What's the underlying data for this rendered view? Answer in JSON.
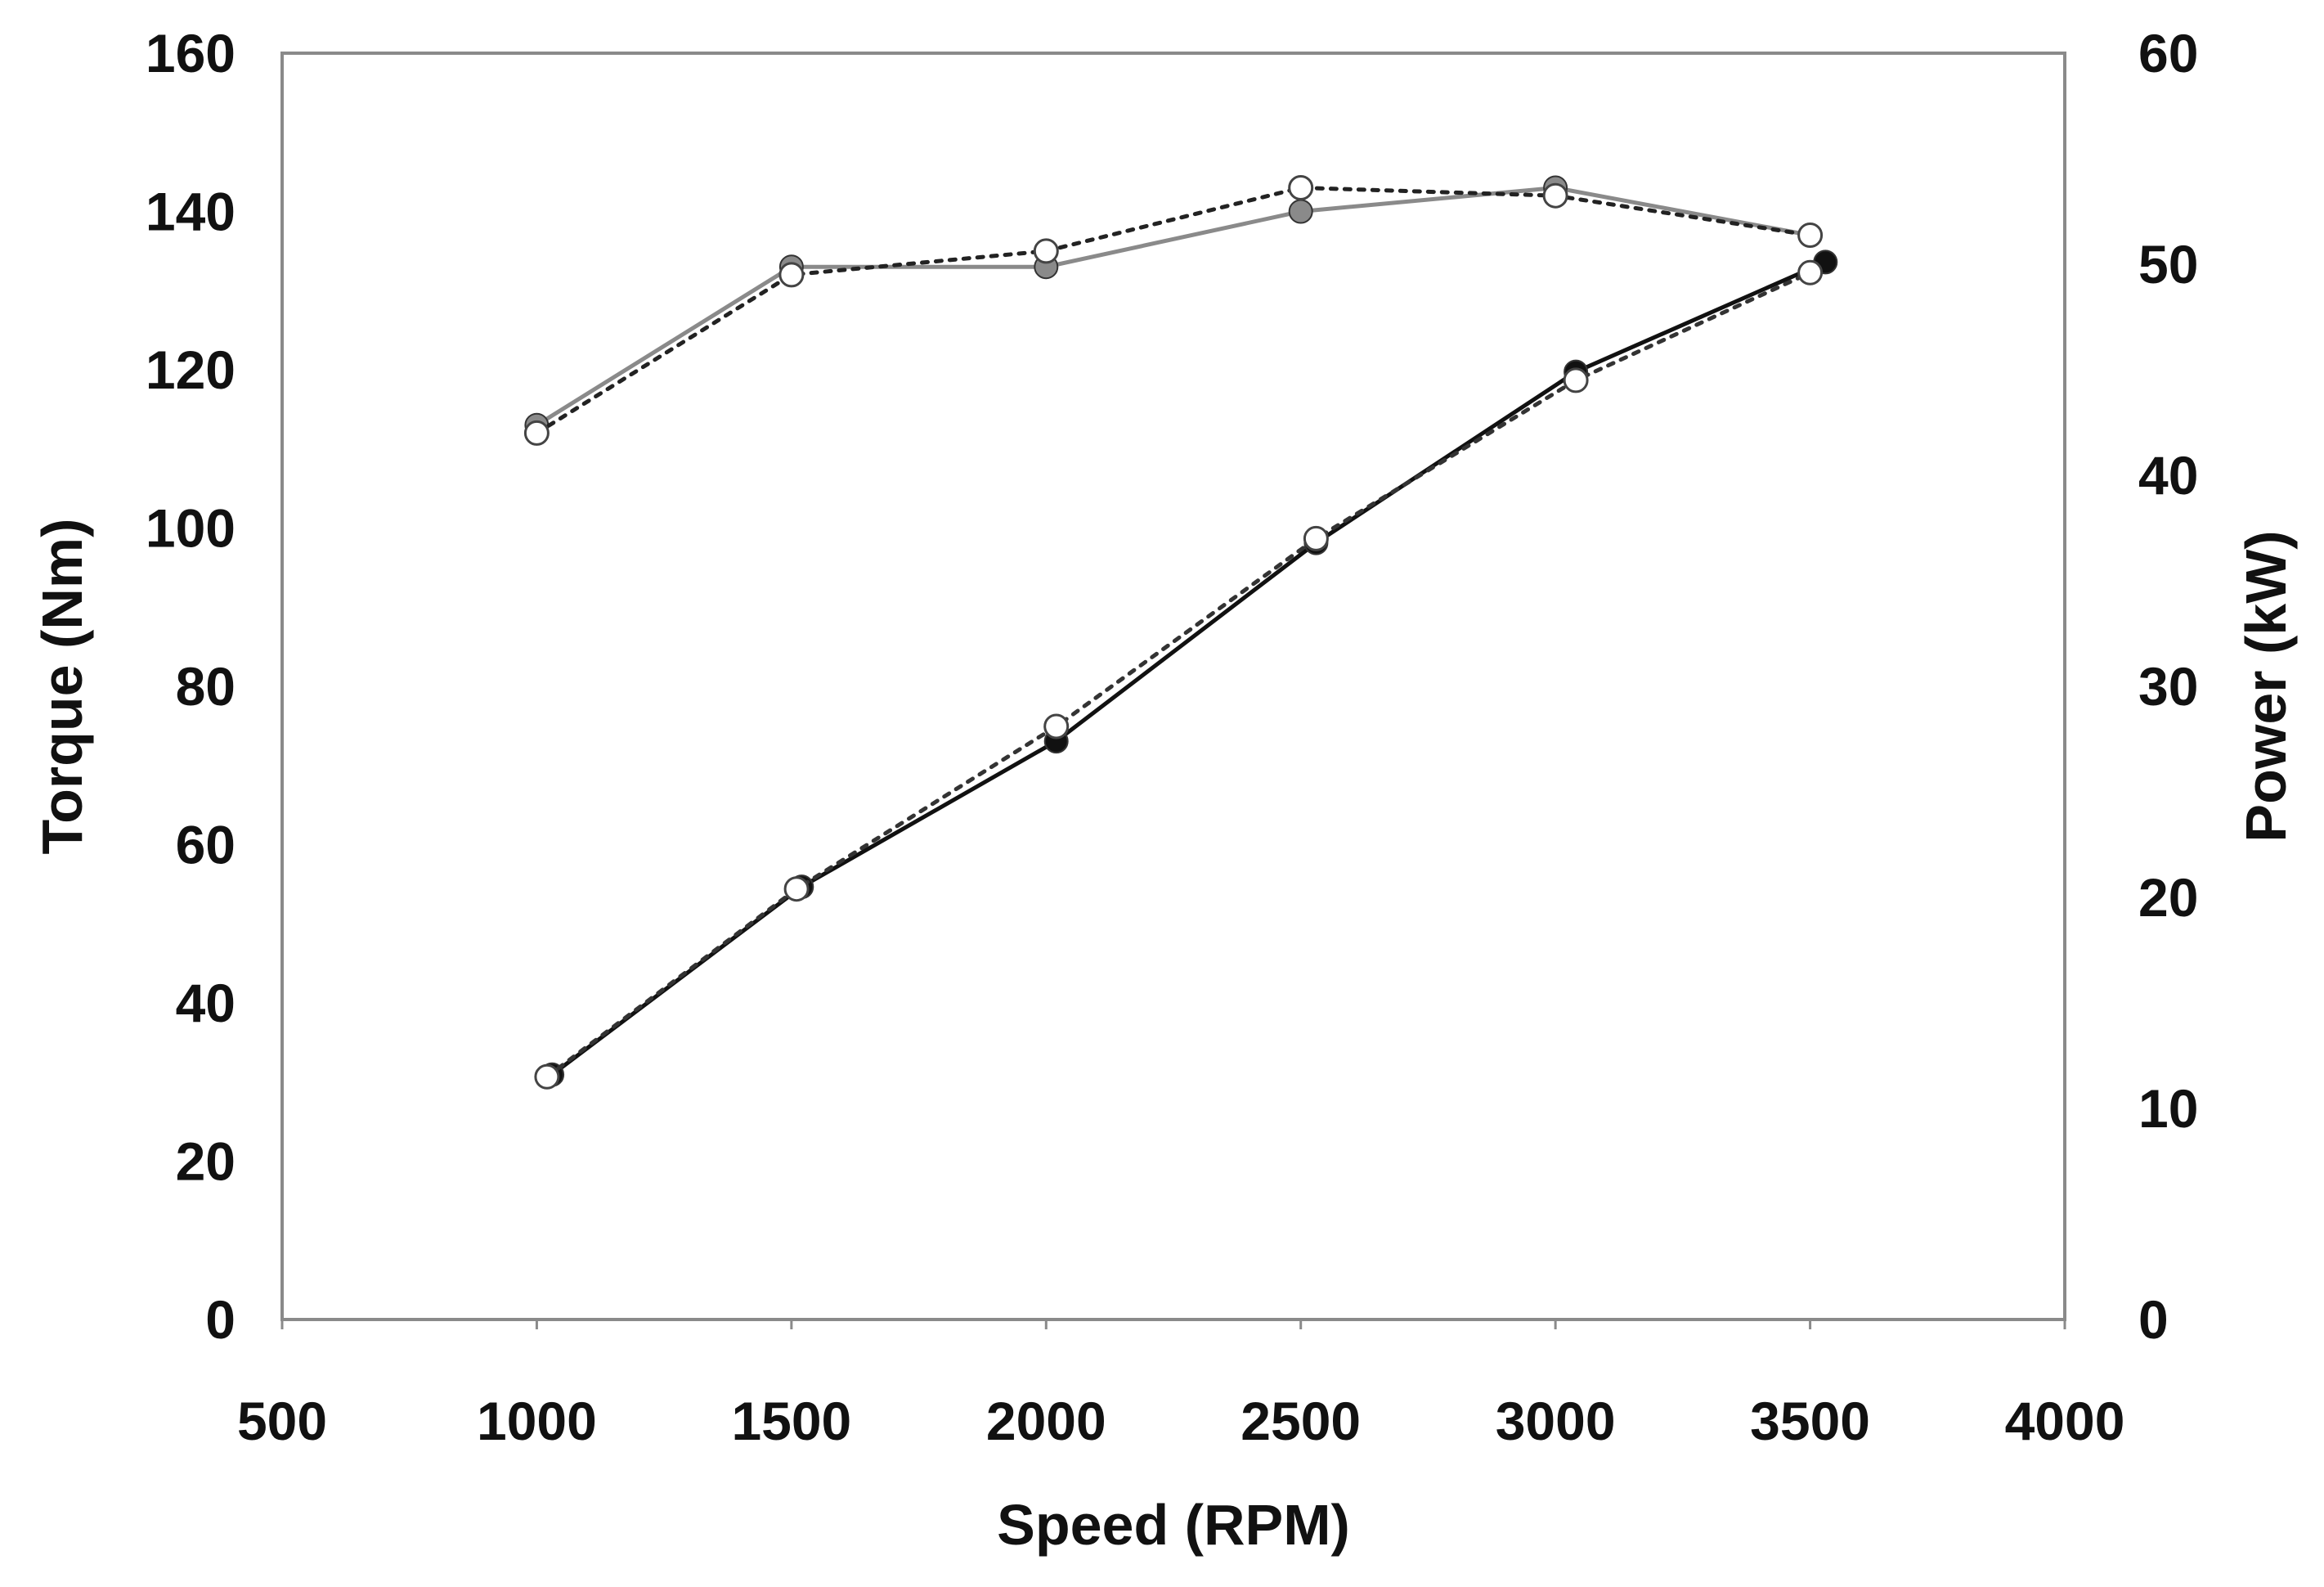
{
  "chart_data": {
    "type": "line",
    "title": "",
    "xlabel": "Speed (RPM)",
    "ylabel": "Torque (Nm)",
    "y2label": "Power (kW)",
    "xlim": [
      500,
      4000
    ],
    "ylim": [
      0,
      160
    ],
    "y2lim": [
      0,
      60
    ],
    "x_ticks": [
      "500",
      "1000",
      "1500",
      "2000",
      "2500",
      "3000",
      "3500",
      "4000"
    ],
    "y_ticks": [
      "0",
      "20",
      "40",
      "60",
      "80",
      "100",
      "120",
      "140",
      "160"
    ],
    "y2_ticks": [
      "0",
      "10",
      "20",
      "30",
      "40",
      "50",
      "60"
    ],
    "grid": false,
    "legend": "none",
    "series": [
      {
        "axis": "left",
        "style": "solid-gray-filled",
        "color": "#8a8a8a",
        "x": [
          1000,
          1500,
          2000,
          2500,
          3000,
          3500
        ],
        "y": [
          113,
          133,
          133,
          140,
          143,
          137
        ]
      },
      {
        "axis": "left",
        "style": "dotted-open",
        "color": "#222222",
        "x": [
          1000,
          1500,
          2000,
          2500,
          3000,
          3500
        ],
        "y": [
          112,
          132,
          135,
          143,
          142,
          137
        ]
      },
      {
        "axis": "right",
        "style": "solid-black-filled",
        "color": "#111111",
        "x": [
          1030,
          1520,
          2020,
          2530,
          3040,
          3530
        ],
        "y": [
          11.6,
          20.5,
          27.4,
          36.8,
          44.9,
          50.1
        ]
      },
      {
        "axis": "right",
        "style": "dotted-open",
        "color": "#333333",
        "x": [
          1020,
          1510,
          2020,
          2530,
          3040,
          3500
        ],
        "y": [
          11.5,
          20.4,
          28.1,
          37.0,
          44.5,
          49.6
        ]
      }
    ]
  }
}
